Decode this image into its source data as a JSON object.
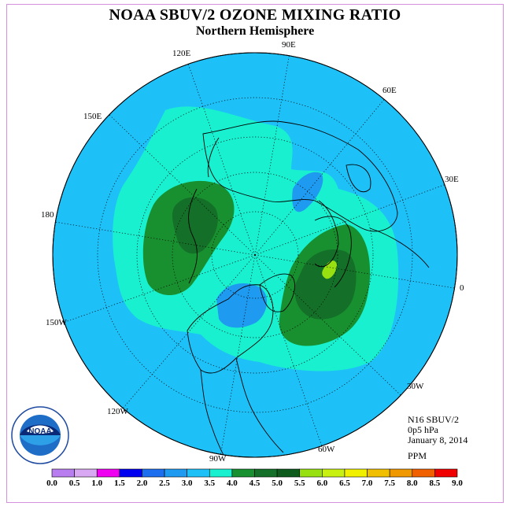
{
  "title": "NOAA SBUV/2 OZONE MIXING RATIO",
  "subtitle": "Northern Hemisphere",
  "info": {
    "instrument": "N16 SBUV/2",
    "level": "0p5 hPa",
    "date": "January 8, 2014",
    "units": "PPM"
  },
  "longitude_labels": [
    "90E",
    "60E",
    "30E",
    "0",
    "30W",
    "60W",
    "90W",
    "120W",
    "150W",
    "180",
    "150E",
    "120E"
  ],
  "colorbar": {
    "labels": [
      "0.0",
      "0.5",
      "1.0",
      "1.5",
      "2.0",
      "2.5",
      "3.0",
      "3.5",
      "4.0",
      "4.5",
      "5.0",
      "5.5",
      "6.0",
      "6.5",
      "7.0",
      "7.5",
      "8.0",
      "8.5",
      "9.0"
    ],
    "colors": [
      "#b87ef0",
      "#d9a8f2",
      "#f000f0",
      "#0000f0",
      "#1e6ef0",
      "#1e9af0",
      "#1ec0f8",
      "#18f0d0",
      "#189030",
      "#147028",
      "#0c5a1c",
      "#98e010",
      "#c8f010",
      "#f0f000",
      "#f0c000",
      "#f09800",
      "#f06000",
      "#f00000",
      "#905028"
    ]
  },
  "colors": {
    "ocean_3_0": "#1ec0f8",
    "band_3_5": "#18f0d0",
    "band_4_0": "#189030",
    "band_4_5": "#147028",
    "band_5_5": "#98e010",
    "band_2_5": "#1e9af0",
    "frame": "#d78fe0"
  },
  "logo": {
    "text": "NOAA",
    "ring_text": "NATIONAL OCEANIC AND ATMOSPHERIC ADMINISTRATION · U.S. DEPARTMENT OF COMMERCE"
  }
}
